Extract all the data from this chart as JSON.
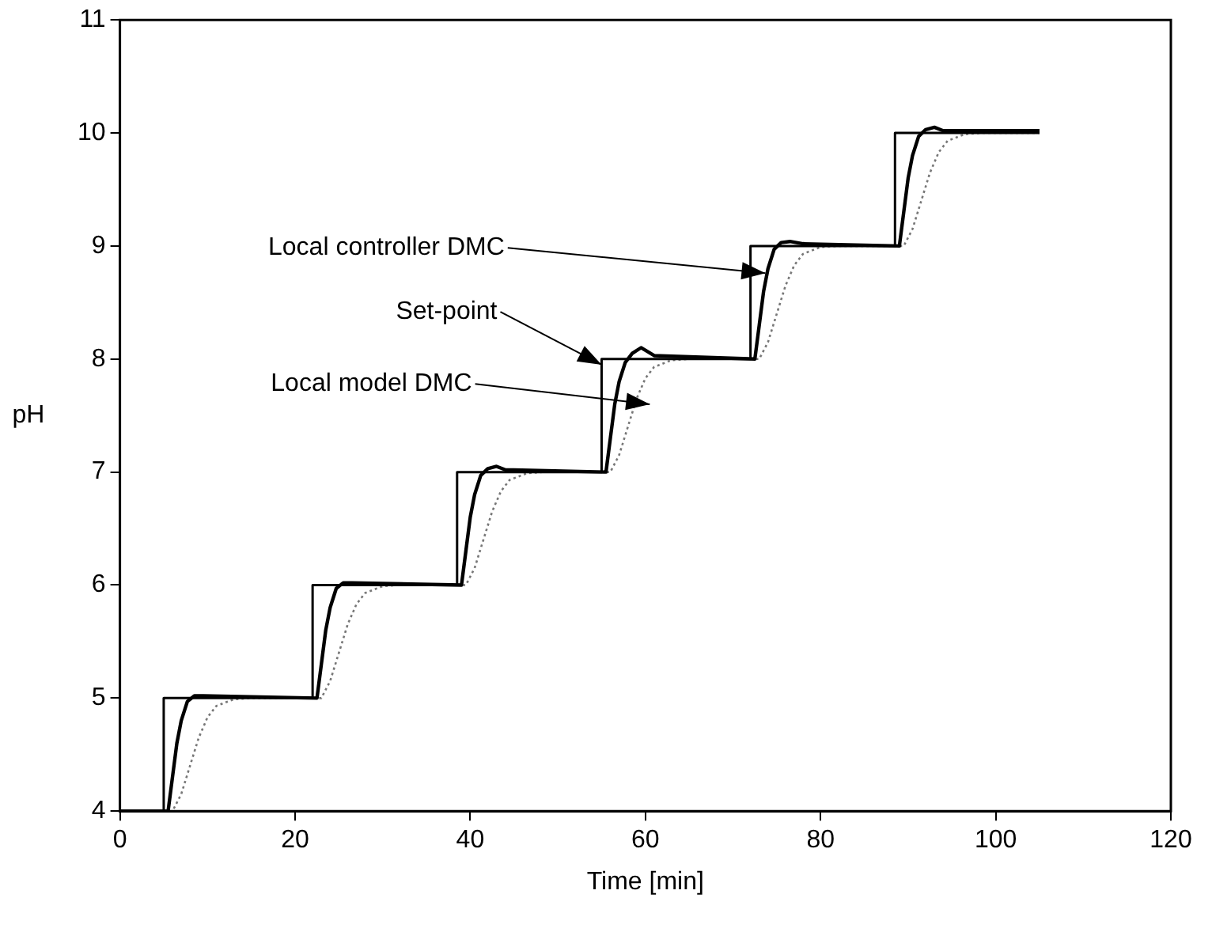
{
  "chart_data": {
    "type": "line",
    "xlabel": "Time [min]",
    "ylabel": "pH",
    "xlim": [
      0,
      120
    ],
    "xticks": [
      0,
      20,
      40,
      60,
      80,
      100,
      120
    ],
    "ylim": [
      4,
      11
    ],
    "yticks": [
      4,
      5,
      6,
      7,
      8,
      9,
      10,
      11
    ],
    "grid": false,
    "legend": false,
    "marker": "none",
    "series": [
      {
        "type": "step",
        "color": "#000000",
        "x": [
          0,
          5,
          22,
          38.5,
          55,
          72,
          88.5,
          105
        ],
        "values": [
          4,
          5,
          6,
          7,
          8,
          9,
          10,
          10
        ]
      },
      {
        "color": "#000000",
        "x": [
          0,
          5.5,
          6,
          6.5,
          7,
          7.7,
          8.5,
          9.5,
          22.5,
          23,
          23.5,
          24,
          24.7,
          25.5,
          26.5,
          39,
          39.5,
          40,
          40.5,
          41.2,
          42,
          43,
          44,
          55.5,
          56,
          56.5,
          57,
          57.7,
          58.5,
          59.5,
          61,
          72.5,
          73,
          73.5,
          74,
          74.7,
          75.5,
          76.5,
          78,
          89,
          89.5,
          90,
          90.5,
          91.2,
          92,
          93,
          94,
          105
        ],
        "values": [
          4,
          4,
          4.3,
          4.6,
          4.8,
          4.97,
          5.02,
          5.02,
          5,
          5.3,
          5.6,
          5.8,
          5.97,
          6.02,
          6.02,
          6,
          6.3,
          6.6,
          6.8,
          6.97,
          7.03,
          7.05,
          7.02,
          7,
          7.3,
          7.6,
          7.8,
          7.97,
          8.05,
          8.1,
          8.03,
          8,
          8.3,
          8.6,
          8.8,
          8.97,
          9.03,
          9.04,
          9.02,
          9,
          9.3,
          9.6,
          9.8,
          9.97,
          10.03,
          10.05,
          10.02,
          10.02
        ]
      },
      {
        "color": "#777777",
        "line_style": "dotted",
        "x": [
          0,
          6,
          7,
          8,
          9,
          10,
          11,
          13,
          15,
          23,
          24,
          25,
          26,
          27,
          28,
          30,
          32,
          39.5,
          40.5,
          41.5,
          42.5,
          43.5,
          44.5,
          46.5,
          48.5,
          56,
          57,
          58,
          59,
          60,
          61,
          63,
          65,
          73,
          74,
          75,
          76,
          77,
          78,
          80,
          82,
          89.5,
          90.5,
          91.5,
          92.5,
          93.5,
          94.5,
          96.5,
          98.5,
          105
        ],
        "values": [
          4,
          4,
          4.15,
          4.4,
          4.65,
          4.83,
          4.93,
          4.99,
          5,
          5,
          5.15,
          5.4,
          5.65,
          5.83,
          5.93,
          5.99,
          6,
          6,
          6.15,
          6.4,
          6.65,
          6.83,
          6.93,
          6.99,
          7,
          7,
          7.15,
          7.4,
          7.65,
          7.83,
          7.93,
          7.99,
          8,
          8,
          8.15,
          8.4,
          8.65,
          8.83,
          8.93,
          8.99,
          9,
          9,
          9.15,
          9.4,
          9.65,
          9.83,
          9.93,
          9.99,
          10,
          10
        ]
      }
    ],
    "annotations": [
      {
        "text": "Local controller DMC",
        "x": 73.7,
        "y": 8.76
      },
      {
        "text": "Set-point",
        "x": 55,
        "y": 7.95
      },
      {
        "text": "Local model DMC",
        "x": 60.5,
        "y": 7.6
      }
    ]
  }
}
